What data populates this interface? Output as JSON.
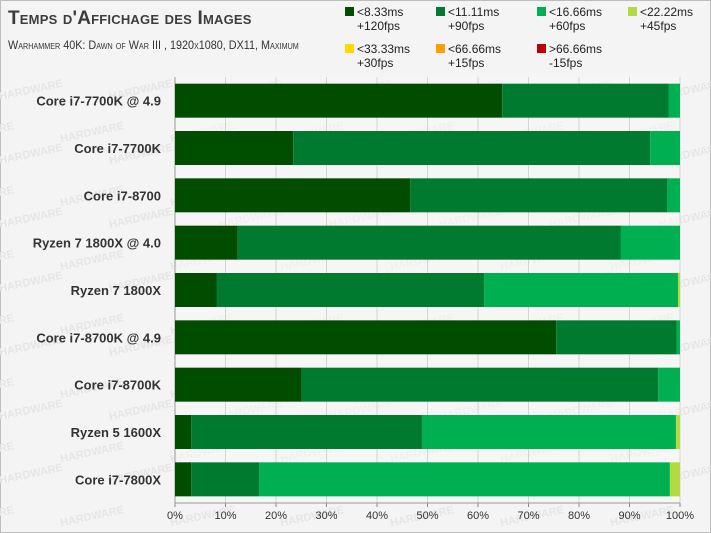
{
  "title": "Temps d'Affichage des Images",
  "subtitle": "Warhammer 40K: Dawn of War III , 1920x1080, DX11, Maximum",
  "watermark": "HARDWARE",
  "chart_data": {
    "type": "bar",
    "orientation": "horizontal",
    "stacked": true,
    "x_unit": "percent",
    "xlim": [
      0,
      100
    ],
    "x_ticks": [
      "0%",
      "10%",
      "20%",
      "30%",
      "40%",
      "50%",
      "60%",
      "70%",
      "80%",
      "90%",
      "100%"
    ],
    "grid": true,
    "legend_position": "top-right",
    "categories": [
      "Core i7-7700K @ 4.9",
      "Core i7-7700K",
      "Core i7-8700",
      "Ryzen 7 1800X @ 4.0",
      "Ryzen 7 1800X",
      "Core i7-8700K @ 4.9",
      "Core i7-8700K",
      "Ryzen 5 1600X",
      "Core i7-7800X"
    ],
    "series": [
      {
        "name": "<8.33ms +120fps",
        "color": "#004d00",
        "values": [
          64.8,
          23.4,
          46.6,
          12.4,
          8.3,
          75.5,
          25.1,
          3.2,
          3.2
        ]
      },
      {
        "name": "<11.11ms +90fps",
        "color": "#007a2f",
        "values": [
          33.0,
          70.7,
          50.9,
          75.9,
          52.9,
          23.8,
          70.6,
          45.7,
          13.5
        ]
      },
      {
        "name": "<16.66ms +60fps",
        "color": "#00b050",
        "values": [
          2.2,
          5.9,
          2.5,
          11.7,
          38.4,
          0.7,
          4.3,
          50.3,
          81.3
        ]
      },
      {
        "name": "<22.22ms +45fps",
        "color": "#b3d943",
        "values": [
          0.0,
          0.0,
          0.0,
          0.0,
          0.4,
          0.0,
          0.0,
          0.8,
          2.0
        ]
      },
      {
        "name": "<33.33ms +30fps",
        "color": "#ffd800",
        "values": [
          0,
          0,
          0,
          0,
          0,
          0,
          0,
          0,
          0
        ]
      },
      {
        "name": "<66.66ms +15fps",
        "color": "#ffa000",
        "values": [
          0,
          0,
          0,
          0,
          0,
          0,
          0,
          0,
          0
        ]
      },
      {
        "name": ">66.66ms -15fps",
        "color": "#c00000",
        "values": [
          0,
          0,
          0,
          0,
          0,
          0,
          0,
          0,
          0
        ]
      }
    ]
  },
  "legend": [
    {
      "line1": "<8.33ms",
      "line2": "+120fps",
      "color": "#004d00"
    },
    {
      "line1": "<11.11ms",
      "line2": "+90fps",
      "color": "#007a2f"
    },
    {
      "line1": "<16.66ms",
      "line2": "+60fps",
      "color": "#00b050"
    },
    {
      "line1": "<22.22ms",
      "line2": "+45fps",
      "color": "#b3d943"
    },
    {
      "line1": "<33.33ms",
      "line2": "+30fps",
      "color": "#ffd800"
    },
    {
      "line1": "<66.66ms",
      "line2": "+15fps",
      "color": "#ffa000"
    },
    {
      "line1": ">66.66ms",
      "line2": "-15fps",
      "color": "#c00000"
    }
  ]
}
